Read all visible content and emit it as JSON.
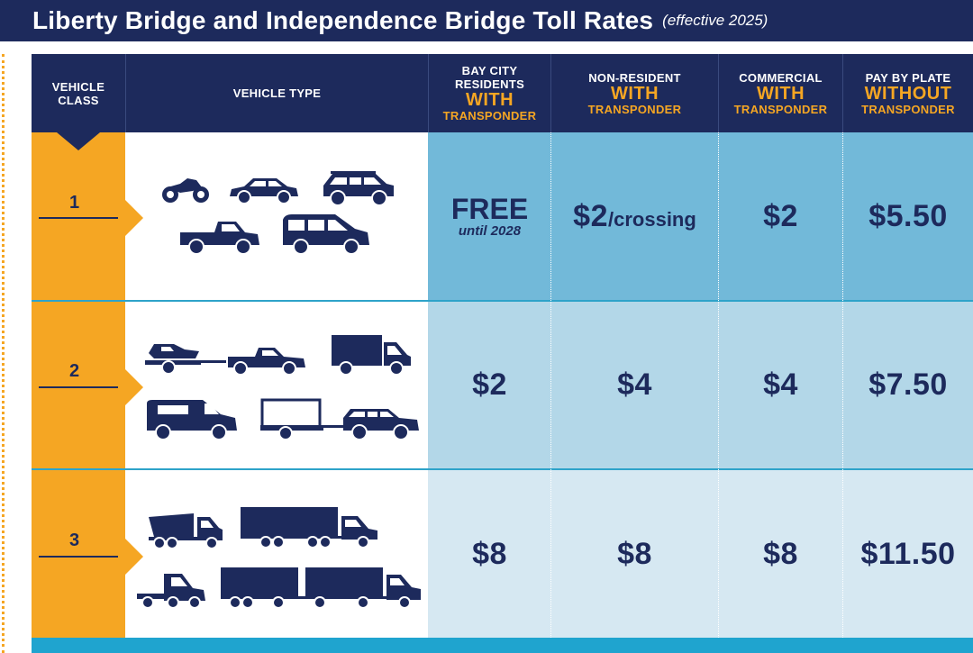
{
  "title": {
    "main": "Liberty Bridge and Independence Bridge Toll Rates",
    "sub": "(effective 2025)"
  },
  "headers": {
    "vehicle_class": [
      "VEHICLE",
      "CLASS"
    ],
    "vehicle_type": "VEHICLE TYPE",
    "columns": [
      {
        "l1a": "BAY CITY",
        "l1b": "RESIDENTS",
        "l2": "WITH",
        "l3": "TRANSPONDER"
      },
      {
        "l1a": "NON-RESIDENT",
        "l1b": "",
        "l2": "WITH",
        "l3": "TRANSPONDER"
      },
      {
        "l1a": "COMMERCIAL",
        "l1b": "",
        "l2": "WITH",
        "l3": "TRANSPONDER"
      },
      {
        "l1a": "PAY BY PLATE",
        "l1b": "",
        "l2": "WITHOUT",
        "l3": "TRANSPONDER"
      }
    ]
  },
  "rows": [
    {
      "class": "1",
      "vehicles": [
        "motorcycle-icon",
        "sedan-icon",
        "suv-icon",
        "pickup-icon",
        "minivan-icon"
      ],
      "rates": {
        "resident": {
          "main": "FREE",
          "note": "until 2028"
        },
        "non_resident": {
          "amount": "$2",
          "unit": "/crossing"
        },
        "commercial": "$2",
        "pay_by_plate": "$5.50"
      }
    },
    {
      "class": "2",
      "vehicles": [
        "boat-trailer-pickup-icon",
        "box-truck-icon",
        "cargo-van-icon",
        "trailer-suv-icon"
      ],
      "rates": {
        "resident": "$2",
        "non_resident": "$4",
        "commercial": "$4",
        "pay_by_plate": "$7.50"
      }
    },
    {
      "class": "3",
      "vehicles": [
        "dump-truck-icon",
        "tractor-trailer-icon",
        "semi-cab-icon",
        "double-trailer-icon"
      ],
      "rates": {
        "resident": "$8",
        "non_resident": "$8",
        "commercial": "$8",
        "pay_by_plate": "$11.50"
      }
    }
  ],
  "colors": {
    "navy": "#1d2a5c",
    "orange": "#f5a623",
    "row1": "#72b9d9",
    "row2": "#b3d7e8",
    "row3": "#d6e8f2",
    "accent_bar": "#1fa4cf"
  }
}
